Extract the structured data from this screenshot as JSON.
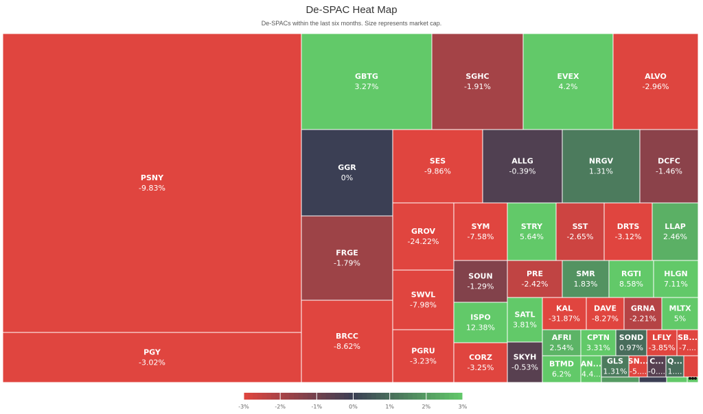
{
  "header": {
    "title": "De-SPAC Heat Map",
    "subtitle": "De-SPACs within the last six months. Size represents market cap."
  },
  "colors": {
    "negative": "#e0453f",
    "neutral": "#3b3f54",
    "positive": "#62c969"
  },
  "chart_data": {
    "type": "heatmap",
    "color_scale": {
      "min": -3,
      "max": 3,
      "ticks": [
        "-3%",
        "-2%",
        "-1%",
        "0%",
        "1%",
        "2%",
        "3%"
      ]
    },
    "tiles": [
      {
        "ticker": "PSNY",
        "change": -9.83,
        "label": "-9.83%"
      },
      {
        "ticker": "PGY",
        "change": -3.02,
        "label": "-3.02%"
      },
      {
        "ticker": "GBTG",
        "change": 3.27,
        "label": "3.27%"
      },
      {
        "ticker": "SGHC",
        "change": -1.91,
        "label": "-1.91%"
      },
      {
        "ticker": "EVEX",
        "change": 4.2,
        "label": "4.2%"
      },
      {
        "ticker": "ALVO",
        "change": -2.96,
        "label": "-2.96%"
      },
      {
        "ticker": "GGR",
        "change": 0,
        "label": "0%"
      },
      {
        "ticker": "SES",
        "change": -9.86,
        "label": "-9.86%"
      },
      {
        "ticker": "ALLG",
        "change": -0.39,
        "label": "-0.39%"
      },
      {
        "ticker": "NRGV",
        "change": 1.31,
        "label": "1.31%"
      },
      {
        "ticker": "DCFC",
        "change": -1.46,
        "label": "-1.46%"
      },
      {
        "ticker": "FRGE",
        "change": -1.79,
        "label": "-1.79%"
      },
      {
        "ticker": "BRCC",
        "change": -8.62,
        "label": "-8.62%"
      },
      {
        "ticker": "GROV",
        "change": -24.22,
        "label": "-24.22%"
      },
      {
        "ticker": "SWVL",
        "change": -7.98,
        "label": "-7.98%"
      },
      {
        "ticker": "PGRU",
        "change": -3.23,
        "label": "-3.23%"
      },
      {
        "ticker": "SYM",
        "change": -7.58,
        "label": "-7.58%"
      },
      {
        "ticker": "STRY",
        "change": 5.64,
        "label": "5.64%"
      },
      {
        "ticker": "SST",
        "change": -2.65,
        "label": "-2.65%"
      },
      {
        "ticker": "DRTS",
        "change": -3.12,
        "label": "-3.12%"
      },
      {
        "ticker": "LLAP",
        "change": 2.46,
        "label": "2.46%"
      },
      {
        "ticker": "SOUN",
        "change": -1.29,
        "label": "-1.29%"
      },
      {
        "ticker": "PRE",
        "change": -2.42,
        "label": "-2.42%"
      },
      {
        "ticker": "SMR",
        "change": 1.83,
        "label": "1.83%"
      },
      {
        "ticker": "RGTI",
        "change": 8.58,
        "label": "8.58%"
      },
      {
        "ticker": "HLGN",
        "change": 7.11,
        "label": "7.11%"
      },
      {
        "ticker": "ISPO",
        "change": 12.38,
        "label": "12.38%"
      },
      {
        "ticker": "SATL",
        "change": 3.81,
        "label": "3.81%"
      },
      {
        "ticker": "KAL",
        "change": -31.87,
        "label": "-31.87%"
      },
      {
        "ticker": "DAVE",
        "change": -8.27,
        "label": "-8.27%"
      },
      {
        "ticker": "GRNA",
        "change": -2.21,
        "label": "-2.21%"
      },
      {
        "ticker": "MLTX",
        "change": 5,
        "label": "5%"
      },
      {
        "ticker": "CORZ",
        "change": -3.25,
        "label": "-3.25%"
      },
      {
        "ticker": "SKYH",
        "change": -0.53,
        "label": "-0.53%"
      },
      {
        "ticker": "AFRI",
        "change": 2.54,
        "label": "2.54%"
      },
      {
        "ticker": "CPTN",
        "change": 3.31,
        "label": "3.31%"
      },
      {
        "ticker": "SOND",
        "change": 0.97,
        "label": "0.97%"
      },
      {
        "ticker": "LFLY",
        "change": -3.85,
        "label": "-3.85%"
      },
      {
        "ticker": "SB...",
        "change": -7,
        "label": "-7...."
      },
      {
        "ticker": "BTMD",
        "change": 6.2,
        "label": "6.2%"
      },
      {
        "ticker": "AN...",
        "change": 4.4,
        "label": "4.4..."
      },
      {
        "ticker": "GLS",
        "change": 1.31,
        "label": "1.31%"
      },
      {
        "ticker": "SN...",
        "change": -5,
        "label": "-5...."
      },
      {
        "ticker": "C...",
        "change": -0.5,
        "label": "-0...."
      },
      {
        "ticker": "Q...",
        "change": 1,
        "label": "1...."
      },
      {
        "ticker": "",
        "change": -3,
        "label": ""
      },
      {
        "ticker": "",
        "change": 2,
        "label": ""
      },
      {
        "ticker": "",
        "change": 0,
        "label": ""
      },
      {
        "ticker": "",
        "change": 3,
        "label": ""
      },
      {
        "ticker": "",
        "change": 3,
        "label": ""
      }
    ]
  }
}
